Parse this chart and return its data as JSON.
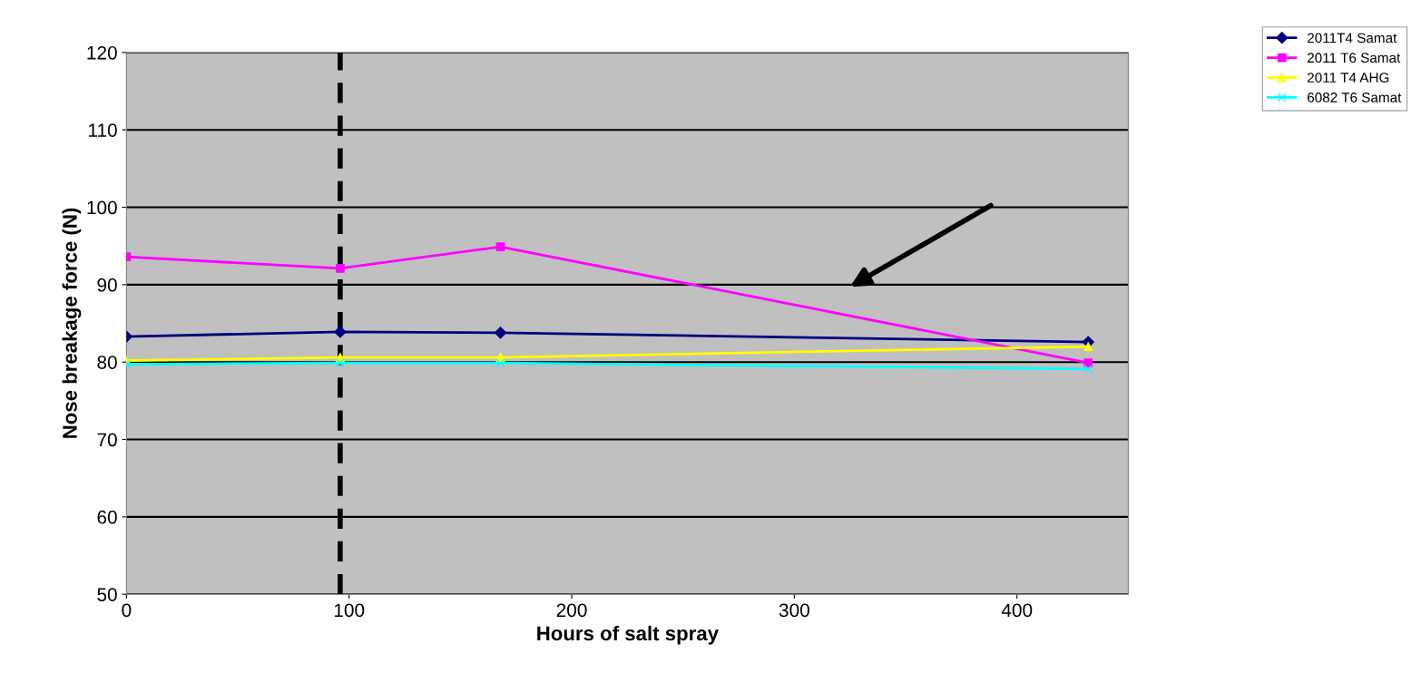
{
  "chart_data": {
    "type": "line",
    "xlabel": "Hours of salt spray",
    "ylabel": "Nose breakage force (N)",
    "x": [
      0,
      96,
      168,
      432
    ],
    "series": [
      {
        "name": "2011T4 Samat",
        "color": "#000080",
        "marker": "diamond",
        "values": [
          83.3,
          83.9,
          83.8,
          82.6
        ]
      },
      {
        "name": "2011 T6 Samat",
        "color": "#ff00ff",
        "marker": "square",
        "values": [
          93.6,
          92.1,
          94.9,
          79.9
        ]
      },
      {
        "name": "2011 T4 AHG",
        "color": "#ffff00",
        "marker": "triangle",
        "values": [
          80.2,
          80.6,
          80.6,
          82.0
        ]
      },
      {
        "name": "6082 T6 Samat",
        "color": "#00ffff",
        "marker": "cross",
        "values": [
          79.7,
          79.9,
          79.9,
          79.1
        ]
      }
    ],
    "xlim": [
      0,
      450
    ],
    "xticks": [
      0,
      100,
      200,
      300,
      400
    ],
    "ylim": [
      50,
      120
    ],
    "yticks": [
      50,
      60,
      70,
      80,
      90,
      100,
      110,
      120
    ],
    "ref_lines": [
      {
        "axis": "x",
        "value": 96,
        "color": "#000000",
        "line_style": "dashed"
      }
    ],
    "grid": "y",
    "legend": "top right"
  }
}
